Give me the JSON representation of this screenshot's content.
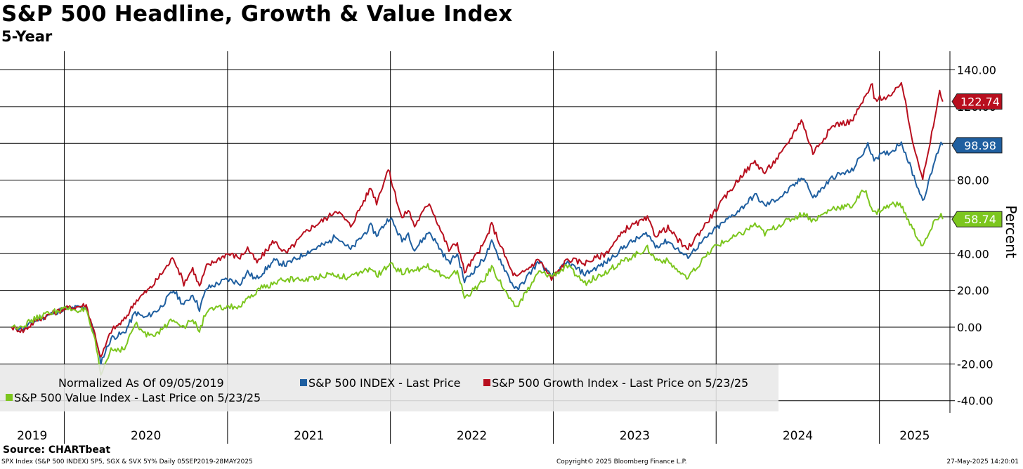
{
  "chart_data": {
    "type": "line",
    "title": "S&P 500 Headline, Growth & Value Index",
    "subtitle": "5-Year",
    "ylabel": "Percent",
    "ylim": [
      -45,
      155
    ],
    "yticks": [
      -40,
      -20,
      0,
      20,
      40,
      60,
      80,
      100,
      120,
      140
    ],
    "ytick_labels": [
      "-40.00",
      "-20.00",
      "0.00",
      "20.00",
      "40.00",
      "60.00",
      "80.00",
      "100.00",
      "120.00",
      "140.00"
    ],
    "x_range": [
      "2019-09-05",
      "2025-05-28"
    ],
    "year_labels": [
      "2019",
      "2020",
      "2021",
      "2022",
      "2023",
      "2024",
      "2025"
    ],
    "grid": true,
    "legend": {
      "placement": "bottom-left",
      "header": "Normalized As Of 09/05/2019"
    },
    "series": [
      {
        "name": "S&P 500 INDEX - Last Price",
        "color": "#1f5fa0",
        "last_value": "98.98",
        "points": [
          [
            "2019-09-05",
            0
          ],
          [
            "2019-10-01",
            -1
          ],
          [
            "2019-11-01",
            4
          ],
          [
            "2019-12-01",
            7
          ],
          [
            "2020-01-01",
            10
          ],
          [
            "2020-02-19",
            11
          ],
          [
            "2020-03-10",
            -5
          ],
          [
            "2020-03-23",
            -19
          ],
          [
            "2020-04-15",
            -6
          ],
          [
            "2020-05-15",
            -3
          ],
          [
            "2020-06-08",
            8
          ],
          [
            "2020-06-30",
            5
          ],
          [
            "2020-08-01",
            10
          ],
          [
            "2020-09-02",
            20
          ],
          [
            "2020-09-25",
            12
          ],
          [
            "2020-10-15",
            18
          ],
          [
            "2020-10-30",
            10
          ],
          [
            "2020-11-15",
            21
          ],
          [
            "2020-12-31",
            26
          ],
          [
            "2021-01-29",
            24
          ],
          [
            "2021-02-15",
            30
          ],
          [
            "2021-03-05",
            26
          ],
          [
            "2021-04-15",
            36
          ],
          [
            "2021-05-12",
            34
          ],
          [
            "2021-06-30",
            41
          ],
          [
            "2021-08-15",
            46
          ],
          [
            "2021-09-02",
            50
          ],
          [
            "2021-10-04",
            42
          ],
          [
            "2021-11-18",
            55
          ],
          [
            "2021-12-01",
            50
          ],
          [
            "2021-12-31",
            60
          ],
          [
            "2022-01-27",
            47
          ],
          [
            "2022-02-10",
            51
          ],
          [
            "2022-02-24",
            42
          ],
          [
            "2022-03-29",
            52
          ],
          [
            "2022-05-12",
            35
          ],
          [
            "2022-05-31",
            40
          ],
          [
            "2022-06-16",
            25
          ],
          [
            "2022-07-29",
            37
          ],
          [
            "2022-08-16",
            46
          ],
          [
            "2022-09-30",
            24
          ],
          [
            "2022-10-12",
            20
          ],
          [
            "2022-11-30",
            36
          ],
          [
            "2022-12-28",
            27
          ],
          [
            "2023-02-02",
            35
          ],
          [
            "2023-03-13",
            29
          ],
          [
            "2023-04-28",
            35
          ],
          [
            "2023-06-15",
            45
          ],
          [
            "2023-07-31",
            51
          ],
          [
            "2023-08-18",
            44
          ],
          [
            "2023-09-15",
            47
          ],
          [
            "2023-10-27",
            38
          ],
          [
            "2023-12-29",
            53
          ],
          [
            "2024-02-28",
            65
          ],
          [
            "2024-03-28",
            72
          ],
          [
            "2024-04-19",
            66
          ],
          [
            "2024-05-31",
            72
          ],
          [
            "2024-07-16",
            82
          ],
          [
            "2024-08-05",
            70
          ],
          [
            "2024-09-20",
            82
          ],
          [
            "2024-10-31",
            85
          ],
          [
            "2024-12-06",
            99
          ],
          [
            "2024-12-20",
            92
          ],
          [
            "2025-01-31",
            96
          ],
          [
            "2025-02-19",
            101
          ],
          [
            "2025-03-13",
            86
          ],
          [
            "2025-04-08",
            69
          ],
          [
            "2025-04-21",
            78
          ],
          [
            "2025-05-02",
            88
          ],
          [
            "2025-05-19",
            101
          ],
          [
            "2025-05-23",
            98.98
          ]
        ]
      },
      {
        "name": "S&P 500 Growth Index - Last Price on 5/23/25",
        "color": "#b80f1e",
        "last_value": "122.74",
        "points": [
          [
            "2019-09-05",
            0
          ],
          [
            "2019-10-01",
            -2
          ],
          [
            "2019-11-01",
            4
          ],
          [
            "2019-12-01",
            7
          ],
          [
            "2020-01-01",
            10
          ],
          [
            "2020-02-19",
            12
          ],
          [
            "2020-03-10",
            -4
          ],
          [
            "2020-03-23",
            -17
          ],
          [
            "2020-04-15",
            -2
          ],
          [
            "2020-05-15",
            4
          ],
          [
            "2020-06-08",
            14
          ],
          [
            "2020-07-15",
            22
          ],
          [
            "2020-09-02",
            38
          ],
          [
            "2020-09-25",
            24
          ],
          [
            "2020-10-15",
            32
          ],
          [
            "2020-10-30",
            22
          ],
          [
            "2020-11-15",
            33
          ],
          [
            "2020-12-31",
            40
          ],
          [
            "2021-01-29",
            38
          ],
          [
            "2021-02-15",
            43
          ],
          [
            "2021-03-08",
            35
          ],
          [
            "2021-04-15",
            47
          ],
          [
            "2021-05-12",
            40
          ],
          [
            "2021-06-30",
            53
          ],
          [
            "2021-08-15",
            60
          ],
          [
            "2021-09-02",
            64
          ],
          [
            "2021-10-04",
            55
          ],
          [
            "2021-11-18",
            76
          ],
          [
            "2021-12-01",
            68
          ],
          [
            "2021-12-27",
            86
          ],
          [
            "2022-01-27",
            59
          ],
          [
            "2022-02-10",
            64
          ],
          [
            "2022-02-24",
            55
          ],
          [
            "2022-03-29",
            68
          ],
          [
            "2022-05-12",
            42
          ],
          [
            "2022-05-31",
            46
          ],
          [
            "2022-06-16",
            30
          ],
          [
            "2022-07-29",
            45
          ],
          [
            "2022-08-16",
            56
          ],
          [
            "2022-09-30",
            30
          ],
          [
            "2022-10-12",
            27
          ],
          [
            "2022-11-30",
            37
          ],
          [
            "2022-12-28",
            26
          ],
          [
            "2023-02-02",
            37
          ],
          [
            "2023-03-13",
            35
          ],
          [
            "2023-04-28",
            40
          ],
          [
            "2023-06-15",
            54
          ],
          [
            "2023-07-31",
            59
          ],
          [
            "2023-08-18",
            50
          ],
          [
            "2023-09-15",
            54
          ],
          [
            "2023-10-27",
            42
          ],
          [
            "2023-12-29",
            63
          ],
          [
            "2024-02-28",
            83
          ],
          [
            "2024-03-28",
            90
          ],
          [
            "2024-04-19",
            84
          ],
          [
            "2024-05-31",
            96
          ],
          [
            "2024-07-10",
            113
          ],
          [
            "2024-08-05",
            95
          ],
          [
            "2024-09-20",
            110
          ],
          [
            "2024-10-31",
            112
          ],
          [
            "2024-12-16",
            132
          ],
          [
            "2024-12-20",
            124
          ],
          [
            "2025-01-31",
            126
          ],
          [
            "2025-02-19",
            134
          ],
          [
            "2025-03-13",
            105
          ],
          [
            "2025-04-08",
            81
          ],
          [
            "2025-04-21",
            95
          ],
          [
            "2025-05-02",
            110
          ],
          [
            "2025-05-16",
            128
          ],
          [
            "2025-05-23",
            122.74
          ]
        ]
      },
      {
        "name": "S&P 500 Value Index - Last Price on 5/23/25",
        "color": "#7cc61e",
        "last_value": "58.74",
        "points": [
          [
            "2019-09-05",
            0
          ],
          [
            "2019-10-01",
            1
          ],
          [
            "2019-11-01",
            5
          ],
          [
            "2019-12-01",
            8
          ],
          [
            "2020-01-01",
            10
          ],
          [
            "2020-02-19",
            9
          ],
          [
            "2020-03-10",
            -8
          ],
          [
            "2020-03-23",
            -26
          ],
          [
            "2020-04-15",
            -12
          ],
          [
            "2020-05-15",
            -12
          ],
          [
            "2020-06-08",
            2
          ],
          [
            "2020-06-30",
            -4
          ],
          [
            "2020-08-01",
            -3
          ],
          [
            "2020-09-02",
            5
          ],
          [
            "2020-09-25",
            0
          ],
          [
            "2020-10-15",
            4
          ],
          [
            "2020-10-30",
            -2
          ],
          [
            "2020-11-15",
            9
          ],
          [
            "2020-12-31",
            11
          ],
          [
            "2021-01-29",
            11
          ],
          [
            "2021-03-15",
            21
          ],
          [
            "2021-05-10",
            26
          ],
          [
            "2021-06-30",
            26
          ],
          [
            "2021-08-15",
            29
          ],
          [
            "2021-10-04",
            27
          ],
          [
            "2021-11-18",
            32
          ],
          [
            "2021-12-01",
            28
          ],
          [
            "2021-12-31",
            34
          ],
          [
            "2022-01-27",
            30
          ],
          [
            "2022-03-29",
            33
          ],
          [
            "2022-05-12",
            26
          ],
          [
            "2022-05-31",
            31
          ],
          [
            "2022-06-16",
            16
          ],
          [
            "2022-07-29",
            25
          ],
          [
            "2022-08-16",
            33
          ],
          [
            "2022-09-30",
            13
          ],
          [
            "2022-10-12",
            11
          ],
          [
            "2022-11-30",
            30
          ],
          [
            "2022-12-28",
            28
          ],
          [
            "2023-02-02",
            33
          ],
          [
            "2023-03-13",
            24
          ],
          [
            "2023-04-28",
            30
          ],
          [
            "2023-06-15",
            37
          ],
          [
            "2023-07-31",
            43
          ],
          [
            "2023-08-18",
            37
          ],
          [
            "2023-09-15",
            36
          ],
          [
            "2023-10-27",
            26
          ],
          [
            "2023-12-29",
            44
          ],
          [
            "2024-02-28",
            51
          ],
          [
            "2024-03-28",
            56
          ],
          [
            "2024-04-19",
            51
          ],
          [
            "2024-05-31",
            57
          ],
          [
            "2024-07-16",
            62
          ],
          [
            "2024-08-05",
            58
          ],
          [
            "2024-09-20",
            65
          ],
          [
            "2024-10-31",
            66
          ],
          [
            "2024-11-29",
            75
          ],
          [
            "2024-12-20",
            62
          ],
          [
            "2025-01-31",
            67
          ],
          [
            "2025-02-19",
            66
          ],
          [
            "2025-03-13",
            55
          ],
          [
            "2025-04-08",
            44
          ],
          [
            "2025-04-21",
            50
          ],
          [
            "2025-05-02",
            56
          ],
          [
            "2025-05-19",
            62
          ],
          [
            "2025-05-23",
            58.74
          ]
        ]
      }
    ]
  },
  "footer": {
    "source": "Source: CHARTbeat",
    "left": "SPX Index (S&P 500 INDEX) SP5, SGX & SVX 5Y%  Daily 05SEP2019-28MAY2025",
    "center": "Copyright© 2025 Bloomberg Finance L.P.",
    "right": "27-May-2025 14:20:01"
  }
}
